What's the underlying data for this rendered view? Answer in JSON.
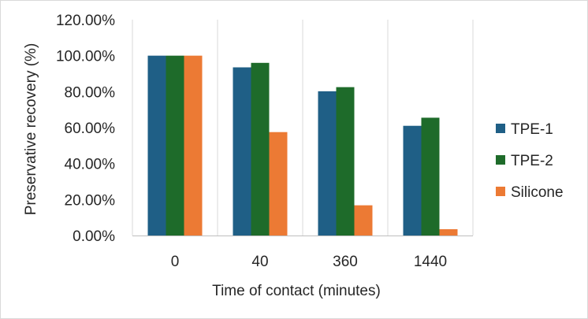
{
  "chart_data": {
    "type": "bar",
    "title": "",
    "xlabel": "Time of contact (minutes)",
    "ylabel": "Preservative recovery (%)",
    "categories": [
      "0",
      "40",
      "360",
      "1440"
    ],
    "series": [
      {
        "name": "TPE-1",
        "color": "#1f5f86",
        "values": [
          100,
          93.5,
          80.2,
          61
        ]
      },
      {
        "name": "TPE-2",
        "color": "#1e6b2a",
        "values": [
          100,
          96,
          82.5,
          65.5
        ]
      },
      {
        "name": "Silicone",
        "color": "#ec7a34",
        "values": [
          100,
          57.5,
          16.8,
          3.5
        ]
      }
    ],
    "ylim": [
      0,
      120
    ],
    "yticks": [
      "0.00%",
      "20.00%",
      "40.00%",
      "60.00%",
      "80.00%",
      "100.00%",
      "120.00%"
    ],
    "grid": "vertical category separators",
    "legend": "right"
  }
}
